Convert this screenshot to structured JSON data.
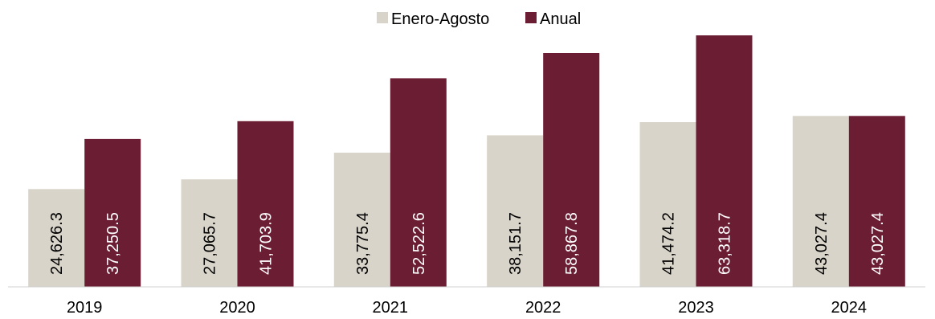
{
  "chart_data": {
    "type": "bar",
    "title": "",
    "xlabel": "",
    "ylabel": "",
    "categories": [
      "2019",
      "2020",
      "2021",
      "2022",
      "2023",
      "2024"
    ],
    "series": [
      {
        "name": "Enero-Agosto",
        "color": "#d9d4c9",
        "label_color": "#000000",
        "values": [
          24626.3,
          27065.7,
          33775.4,
          38151.7,
          41474.2,
          43027.4
        ],
        "labels": [
          "24,626.3",
          "27,065.7",
          "33,775.4",
          "38,151.7",
          "41,474.2",
          "43,027.4"
        ]
      },
      {
        "name": "Anual",
        "color": "#6b1d33",
        "label_color": "#ffffff",
        "values": [
          37250.5,
          41703.9,
          52522.6,
          58867.8,
          63318.7,
          43027.4
        ],
        "labels": [
          "37,250.5",
          "41,703.9",
          "52,522.6",
          "58,867.8",
          "63,318.7",
          "43,027.4"
        ]
      }
    ],
    "ylim": [
      0,
      65000
    ],
    "grid": false,
    "legend_position": "top-center",
    "data_labels_rotation": "vertical"
  }
}
